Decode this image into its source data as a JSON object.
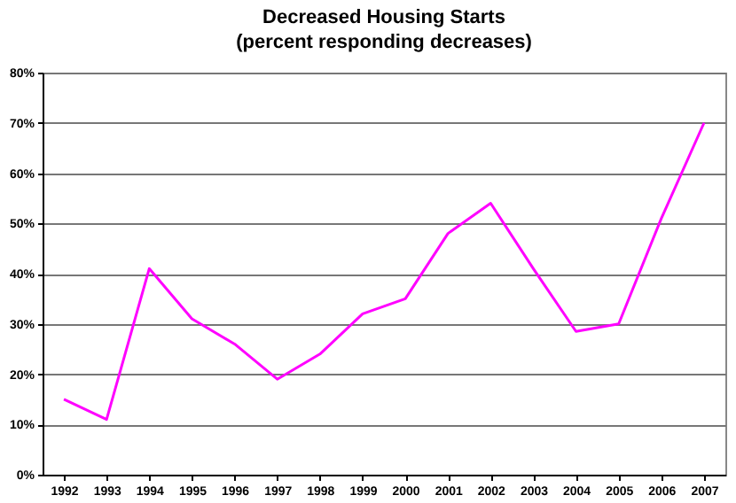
{
  "chart_data": {
    "type": "line",
    "title": "Decreased Housing Starts",
    "subtitle": "(percent responding decreases)",
    "categories": [
      "1992",
      "1993",
      "1994",
      "1995",
      "1996",
      "1997",
      "1998",
      "1999",
      "2000",
      "2001",
      "2002",
      "2003",
      "2004",
      "2005",
      "2006",
      "2007"
    ],
    "series": [
      {
        "color": "#ff00ff",
        "values": [
          15,
          11,
          41,
          31,
          26,
          19,
          24,
          32,
          35,
          48,
          54,
          41,
          28.5,
          30,
          51,
          70
        ]
      }
    ],
    "ylim": [
      0,
      80
    ],
    "yticks": [
      {
        "value": 0,
        "label": "0%"
      },
      {
        "value": 10,
        "label": "10%"
      },
      {
        "value": 20,
        "label": "20%"
      },
      {
        "value": 30,
        "label": "30%"
      },
      {
        "value": 40,
        "label": "40%"
      },
      {
        "value": 50,
        "label": "50%"
      },
      {
        "value": 60,
        "label": "60%"
      },
      {
        "value": 70,
        "label": "70%"
      },
      {
        "value": 80,
        "label": "80%"
      }
    ],
    "grid": "y",
    "legend": false,
    "marker": "none",
    "line_style": "solid"
  }
}
